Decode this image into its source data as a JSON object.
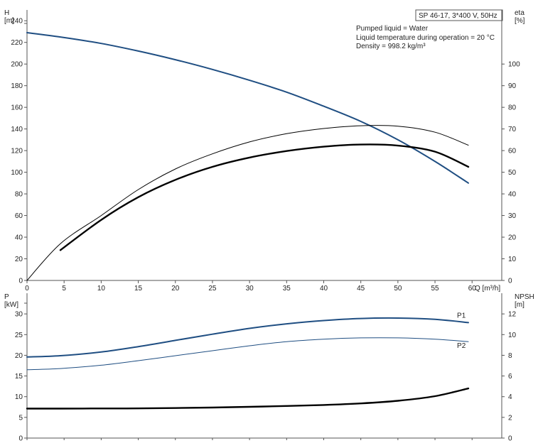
{
  "header": {
    "model": "SP 46-17, 3*400 V, 50Hz",
    "info_lines": [
      "Pumped liquid = Water",
      "Liquid temperature during operation = 20 °C",
      "Density = 998.2 kg/m³"
    ]
  },
  "colors": {
    "head_curve": "#1f4e82",
    "power_curve": "#1f4e82",
    "eta_curve": "#000000",
    "npsh_curve": "#000000"
  },
  "chart_data": [
    {
      "type": "line",
      "xlabel": "Q [m³/h]",
      "ylabel": "H\n[m]",
      "y2label": "eta\n[%]",
      "xlim": [
        0,
        64
      ],
      "ylim": [
        0,
        250
      ],
      "y2lim": [
        0,
        125
      ],
      "x_ticks": [
        0,
        5,
        10,
        15,
        20,
        25,
        30,
        35,
        40,
        45,
        50,
        55,
        60
      ],
      "y_ticks": [
        0,
        20,
        40,
        60,
        80,
        100,
        120,
        140,
        160,
        180,
        200,
        220,
        240
      ],
      "y2_ticks": [
        0,
        10,
        20,
        30,
        40,
        50,
        60,
        70,
        80,
        90,
        100
      ],
      "grid": false,
      "series": [
        {
          "name": "",
          "axis": "left",
          "style": "head",
          "x": [
            0,
            4.5,
            10,
            15,
            20,
            25,
            30,
            35,
            40,
            45,
            50,
            55,
            59.5
          ],
          "y": [
            229,
            225,
            219,
            212,
            204,
            195,
            185,
            174,
            161,
            147,
            130,
            110,
            90
          ]
        },
        {
          "name": "",
          "axis": "right",
          "style": "eta_thin",
          "x": [
            0,
            4.5,
            10,
            15,
            20,
            25,
            30,
            35,
            40,
            45,
            50,
            55,
            59.5
          ],
          "y": [
            0,
            17,
            30,
            42,
            51.5,
            58.5,
            64,
            67.8,
            70.2,
            71.5,
            71.3,
            68.5,
            62.5
          ]
        },
        {
          "name": "",
          "axis": "right",
          "style": "eta_thick",
          "x": [
            4.5,
            10,
            15,
            20,
            25,
            30,
            35,
            40,
            45,
            50,
            55,
            59.5
          ],
          "y": [
            14,
            28,
            38.5,
            46.5,
            52.5,
            56.8,
            59.8,
            61.8,
            62.8,
            62.3,
            59.5,
            52.5
          ]
        }
      ]
    },
    {
      "type": "line",
      "xlabel": "",
      "ylabel": "P\n[kW]",
      "y2label": "NPSH\n[m]",
      "xlim": [
        0,
        64
      ],
      "ylim": [
        0,
        35
      ],
      "y2lim": [
        0,
        14
      ],
      "y_ticks": [
        0,
        5,
        10,
        15,
        20,
        25,
        30
      ],
      "y2_ticks": [
        0,
        2,
        4,
        6,
        8,
        10,
        12
      ],
      "grid": false,
      "series": [
        {
          "name": "P1",
          "axis": "left",
          "style": "p1",
          "x": [
            0,
            4.5,
            10,
            15,
            20,
            25,
            30,
            35,
            40,
            45,
            50,
            55,
            59.5
          ],
          "y": [
            19.6,
            19.9,
            20.8,
            22.1,
            23.6,
            25.1,
            26.5,
            27.6,
            28.4,
            28.9,
            29.0,
            28.7,
            27.9
          ]
        },
        {
          "name": "P2",
          "axis": "left",
          "style": "p2",
          "x": [
            0,
            4.5,
            10,
            15,
            20,
            25,
            30,
            35,
            40,
            45,
            50,
            55,
            59.5
          ],
          "y": [
            16.5,
            16.8,
            17.6,
            18.7,
            19.9,
            21.1,
            22.3,
            23.3,
            23.9,
            24.2,
            24.2,
            23.9,
            23.3
          ]
        },
        {
          "name": "",
          "axis": "right",
          "style": "npsh",
          "x": [
            0,
            4.5,
            10,
            15,
            20,
            25,
            30,
            35,
            40,
            45,
            50,
            55,
            59.5
          ],
          "y": [
            2.85,
            2.85,
            2.86,
            2.87,
            2.9,
            2.95,
            3.02,
            3.1,
            3.2,
            3.35,
            3.6,
            4.05,
            4.8
          ]
        }
      ]
    }
  ]
}
